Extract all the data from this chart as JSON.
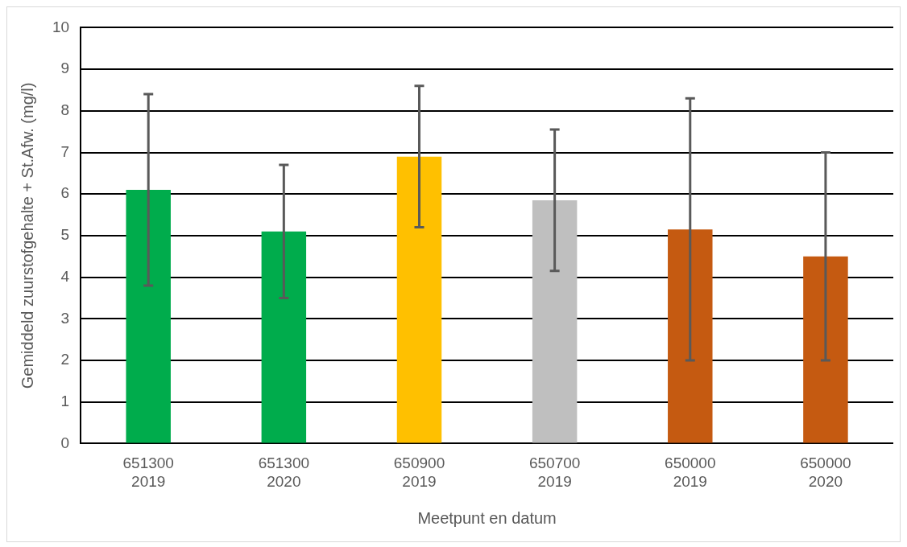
{
  "chart_data": {
    "type": "bar",
    "xlabel": "Meetpunt en datum",
    "ylabel": "Gemiddeld zuurstofgehalte + St.Afw. (mg/l)",
    "categories": [
      "651300 2019",
      "651300 2020",
      "650900 2019",
      "650700 2019",
      "650000 2019",
      "650000 2020"
    ],
    "values": [
      6.1,
      5.1,
      6.9,
      5.85,
      5.15,
      4.5
    ],
    "errors": [
      2.3,
      1.6,
      1.7,
      1.7,
      3.15,
      2.5
    ],
    "colors": [
      "#00ac4c",
      "#00ac4c",
      "#ffc000",
      "#bfbfbf",
      "#c55a11",
      "#c55a11"
    ],
    "ylim": [
      0,
      10
    ],
    "yticks": [
      0,
      1,
      2,
      3,
      4,
      5,
      6,
      7,
      8,
      9,
      10
    ],
    "grid": "y",
    "legend": false
  }
}
